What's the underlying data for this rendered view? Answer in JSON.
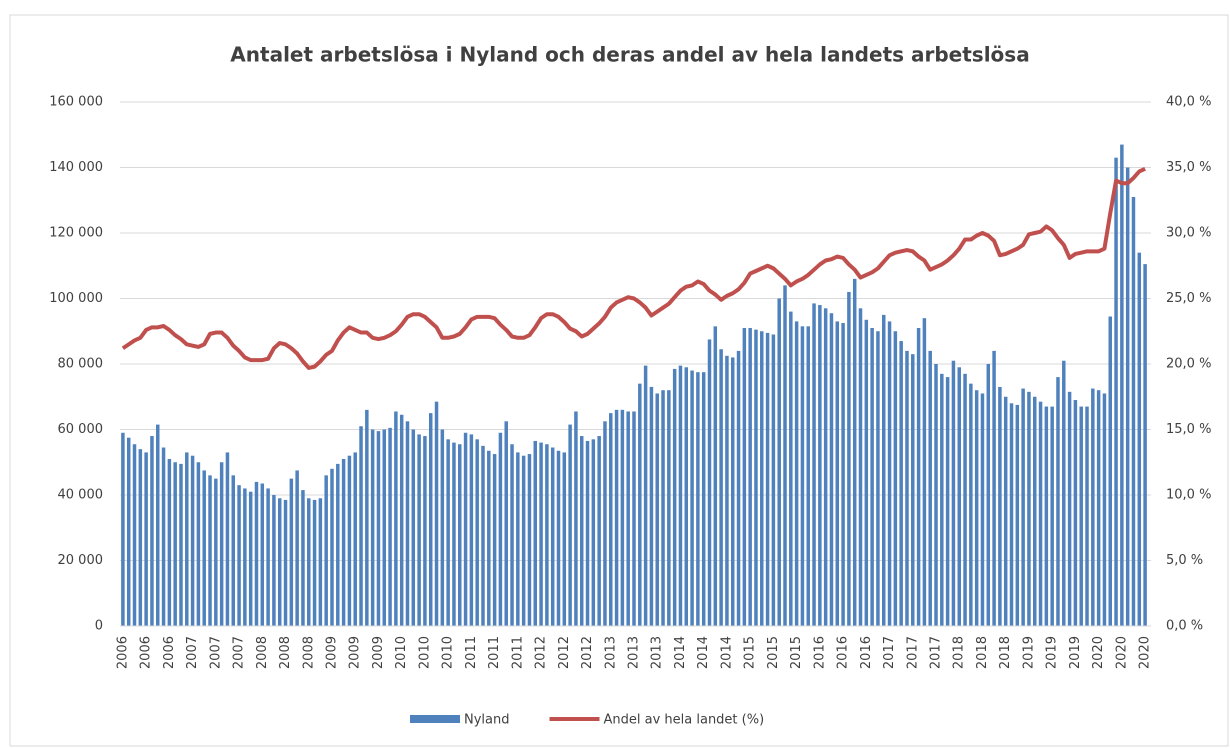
{
  "chart_data": {
    "type": "bar_line",
    "title": "Antalet arbetslösa i Nyland och deras andel av hela landets arbetslösa",
    "categories": [
      "2006",
      null,
      null,
      null,
      "2006",
      null,
      null,
      null,
      "2006",
      null,
      null,
      null,
      "2007",
      null,
      null,
      null,
      "2007",
      null,
      null,
      null,
      "2007",
      null,
      null,
      null,
      "2008",
      null,
      null,
      null,
      "2008",
      null,
      null,
      null,
      "2008",
      null,
      null,
      null,
      "2009",
      null,
      null,
      null,
      "2009",
      null,
      null,
      null,
      "2009",
      null,
      null,
      null,
      "2010",
      null,
      null,
      null,
      "2010",
      null,
      null,
      null,
      "2010",
      null,
      null,
      null,
      "2011",
      null,
      null,
      null,
      "2011",
      null,
      null,
      null,
      "2011",
      null,
      null,
      null,
      "2012",
      null,
      null,
      null,
      "2012",
      null,
      null,
      null,
      "2012",
      null,
      null,
      null,
      "2013",
      null,
      null,
      null,
      "2013",
      null,
      null,
      null,
      "2013",
      null,
      null,
      null,
      "2014",
      null,
      null,
      null,
      "2014",
      null,
      null,
      null,
      "2014",
      null,
      null,
      null,
      "2015",
      null,
      null,
      null,
      "2015",
      null,
      null,
      null,
      "2015",
      null,
      null,
      null,
      "2016",
      null,
      null,
      null,
      "2016",
      null,
      null,
      null,
      "2016",
      null,
      null,
      null,
      "2017",
      null,
      null,
      null,
      "2017",
      null,
      null,
      null,
      "2017",
      null,
      null,
      null,
      "2018",
      null,
      null,
      null,
      "2018",
      null,
      null,
      null,
      "2018",
      null,
      null,
      null,
      "2019",
      null,
      null,
      null,
      "2019",
      null,
      null,
      null,
      "2019",
      null,
      null,
      null,
      "2020",
      null,
      null,
      null,
      "2020",
      null,
      null,
      null,
      "2020"
    ],
    "series": [
      {
        "name": "Nyland",
        "type": "bar",
        "color": "#4f81bd",
        "values": [
          59000,
          57500,
          55500,
          54000,
          53000,
          58000,
          61500,
          54500,
          51000,
          50000,
          49500,
          53000,
          52000,
          50000,
          47500,
          46000,
          45000,
          50000,
          53000,
          46000,
          43000,
          42000,
          41000,
          44000,
          43500,
          42000,
          40000,
          39000,
          38500,
          45000,
          47500,
          41500,
          39000,
          38500,
          39000,
          46000,
          48000,
          49500,
          51000,
          52000,
          53000,
          61000,
          66000,
          60000,
          59500,
          60000,
          60500,
          65500,
          64500,
          62500,
          60000,
          58500,
          58000,
          65000,
          68500,
          60000,
          57000,
          56000,
          55500,
          59000,
          58500,
          57000,
          55000,
          53500,
          52500,
          59000,
          62500,
          55500,
          53000,
          52000,
          52500,
          56500,
          56000,
          55500,
          54500,
          53500,
          53000,
          61500,
          65500,
          58000,
          56500,
          57000,
          58000,
          62500,
          65000,
          66000,
          66000,
          65500,
          65500,
          74000,
          79500,
          73000,
          71000,
          72000,
          72000,
          78500,
          79500,
          79000,
          78000,
          77500,
          77500,
          87500,
          91500,
          84500,
          82500,
          82000,
          84000,
          91000,
          91000,
          90500,
          90000,
          89500,
          89000,
          100000,
          104000,
          96000,
          93000,
          91500,
          91500,
          98500,
          98000,
          97000,
          95500,
          93000,
          92500,
          102000,
          106000,
          97000,
          93500,
          91000,
          90000,
          95000,
          93000,
          90000,
          87000,
          84000,
          83000,
          91000,
          94000,
          84000,
          80000,
          77000,
          76000,
          81000,
          79000,
          77000,
          74000,
          72000,
          71000,
          80000,
          84000,
          73000,
          70000,
          68000,
          67500,
          72500,
          71500,
          70000,
          68500,
          67000,
          67000,
          76000,
          81000,
          71500,
          69000,
          67000,
          67000,
          72500,
          72000,
          71000,
          94500,
          143000,
          147000,
          140000,
          131000,
          114000,
          110500
        ]
      },
      {
        "name": "Andel av hela landet (%)",
        "type": "line",
        "axis": "y2",
        "color": "#c0504d",
        "values": [
          21.2,
          21.5,
          21.8,
          22.0,
          22.6,
          22.8,
          22.8,
          22.9,
          22.6,
          22.2,
          21.9,
          21.5,
          21.4,
          21.3,
          21.5,
          22.3,
          22.4,
          22.4,
          22.0,
          21.4,
          21.0,
          20.5,
          20.3,
          20.3,
          20.3,
          20.4,
          21.2,
          21.6,
          21.5,
          21.2,
          20.8,
          20.2,
          19.7,
          19.8,
          20.2,
          20.7,
          21.0,
          21.8,
          22.4,
          22.8,
          22.6,
          22.4,
          22.4,
          22.0,
          21.9,
          22.0,
          22.2,
          22.5,
          23.0,
          23.6,
          23.8,
          23.8,
          23.6,
          23.2,
          22.8,
          22.0,
          22.0,
          22.1,
          22.3,
          22.8,
          23.4,
          23.6,
          23.6,
          23.6,
          23.5,
          23.0,
          22.6,
          22.1,
          22.0,
          22.0,
          22.2,
          22.8,
          23.5,
          23.8,
          23.8,
          23.6,
          23.2,
          22.7,
          22.5,
          22.1,
          22.3,
          22.7,
          23.1,
          23.6,
          24.3,
          24.7,
          24.9,
          25.1,
          25.0,
          24.7,
          24.3,
          23.7,
          24.0,
          24.3,
          24.6,
          25.1,
          25.6,
          25.9,
          26.0,
          26.3,
          26.1,
          25.6,
          25.3,
          24.9,
          25.2,
          25.4,
          25.7,
          26.2,
          26.9,
          27.1,
          27.3,
          27.5,
          27.3,
          26.9,
          26.5,
          26.0,
          26.3,
          26.5,
          26.8,
          27.2,
          27.6,
          27.9,
          28.0,
          28.2,
          28.1,
          27.6,
          27.2,
          26.6,
          26.8,
          27.0,
          27.3,
          27.8,
          28.3,
          28.5,
          28.6,
          28.7,
          28.6,
          28.2,
          27.9,
          27.2,
          27.4,
          27.6,
          27.9,
          28.3,
          28.8,
          29.5,
          29.5,
          29.8,
          30.0,
          29.8,
          29.4,
          28.3,
          28.4,
          28.6,
          28.8,
          29.1,
          29.9,
          30.0,
          30.1,
          30.5,
          30.2,
          29.6,
          29.1,
          28.1,
          28.4,
          28.5,
          28.6,
          28.6,
          28.6,
          28.8,
          31.5,
          34.0,
          33.8,
          33.8,
          34.2,
          34.7,
          34.9
        ]
      }
    ],
    "ylim": [
      0,
      160000
    ],
    "yticks": [
      0,
      {
        "value": 20000,
        "label": "20 000"
      },
      {
        "value": 40000,
        "label": "40 000"
      },
      {
        "value": 60000,
        "label": "60 000"
      },
      {
        "value": 80000,
        "label": "80 000"
      },
      {
        "value": 100000,
        "label": "100 000"
      },
      {
        "value": 120000,
        "label": "120 000"
      },
      {
        "value": 140000,
        "label": "140 000"
      },
      {
        "value": 160000,
        "label": "160 000"
      }
    ],
    "y2lim": [
      0,
      40
    ],
    "y2ticks": [
      {
        "value": 0,
        "label": "0,0 %"
      },
      {
        "value": 5,
        "label": "5,0 %"
      },
      {
        "value": 10,
        "label": "10,0 %"
      },
      {
        "value": 15,
        "label": "15,0 %"
      },
      {
        "value": 20,
        "label": "20,0 %"
      },
      {
        "value": 25,
        "label": "25,0 %"
      },
      {
        "value": 30,
        "label": "30,0 %"
      },
      {
        "value": 35,
        "label": "35,0 %"
      },
      {
        "value": 40,
        "label": "40,0 %"
      }
    ],
    "grid": true,
    "legend": "bottom"
  }
}
